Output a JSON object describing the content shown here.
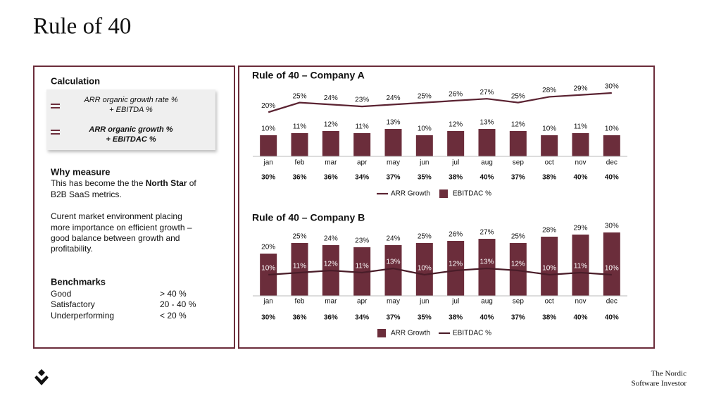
{
  "title": "Rule of 40",
  "calculation": {
    "heading": "Calculation",
    "formula_1": [
      "ARR organic growth rate %",
      "+ EBITDA %"
    ],
    "formula_2": [
      "ARR organic growth %",
      "+ EBITDAC %"
    ]
  },
  "why_measure": {
    "heading": "Why measure",
    "paragraph_1": [
      [
        "This has become the the ",
        "North Star",
        " of"
      ],
      [
        "B2B SaaS metrics."
      ]
    ],
    "paragraph_2": [
      "Curent market environment placing",
      "more importance on efficient growth –",
      "good balance between growth and",
      "profitability."
    ]
  },
  "benchmarks": {
    "heading": "Benchmarks",
    "rows": [
      [
        "Good",
        "> 40 %"
      ],
      [
        "Satisfactory",
        "20 - 40 %"
      ],
      [
        "Underperforming",
        "< 20 %"
      ]
    ]
  },
  "footer": [
    "The Nordic",
    "Software Investor"
  ],
  "chart_data": [
    {
      "type": "combo",
      "title": "Rule of 40 – Company A",
      "categories": [
        "jan",
        "feb",
        "mar",
        "apr",
        "may",
        "jun",
        "jul",
        "aug",
        "sep",
        "oct",
        "nov",
        "dec"
      ],
      "series": [
        {
          "name": "ARR Growth",
          "type": "line",
          "axis": "y2",
          "color": "#5b2332",
          "values": [
            20,
            25,
            24,
            23,
            24,
            25,
            26,
            27,
            25,
            28,
            29,
            30
          ],
          "value_labels": [
            "20%",
            "25%",
            "24%",
            "23%",
            "24%",
            "25%",
            "26%",
            "27%",
            "25%",
            "28%",
            "29%",
            "30%"
          ]
        },
        {
          "name": "EBITDAC %",
          "type": "bar",
          "color": "#6b2d3b",
          "values": [
            10,
            11,
            12,
            11,
            13,
            10,
            12,
            13,
            12,
            10,
            11,
            10
          ],
          "value_labels": [
            "10%",
            "11%",
            "12%",
            "11%",
            "13%",
            "10%",
            "12%",
            "13%",
            "12%",
            "10%",
            "11%",
            "10%"
          ]
        }
      ],
      "ylim": [
        0,
        40
      ],
      "y2lim": [
        -3,
        41
      ],
      "totals": {
        "values": [
          30,
          36,
          36,
          34,
          37,
          35,
          38,
          40,
          37,
          38,
          40,
          40
        ],
        "value_labels": [
          "30%",
          "36%",
          "36%",
          "34%",
          "37%",
          "35%",
          "38%",
          "40%",
          "37%",
          "38%",
          "40%",
          "40%"
        ]
      }
    },
    {
      "type": "combo",
      "title": "Rule of 40 – Company B",
      "categories": [
        "jan",
        "feb",
        "mar",
        "apr",
        "may",
        "jun",
        "jul",
        "aug",
        "sep",
        "oct",
        "nov",
        "dec"
      ],
      "series": [
        {
          "name": "ARR Growth",
          "type": "bar",
          "color": "#6b2d3b",
          "values": [
            20,
            25,
            24,
            23,
            24,
            25,
            26,
            27,
            25,
            28,
            29,
            30
          ],
          "value_labels": [
            "20%",
            "25%",
            "24%",
            "23%",
            "24%",
            "25%",
            "26%",
            "27%",
            "25%",
            "28%",
            "29%",
            "30%"
          ]
        },
        {
          "name": "EBITDAC %",
          "type": "line",
          "color": "#4a1d29",
          "values": [
            10,
            11,
            12,
            11,
            13,
            10,
            12,
            13,
            12,
            10,
            11,
            10
          ],
          "value_labels": [
            "10%",
            "11%",
            "12%",
            "11%",
            "13%",
            "10%",
            "12%",
            "13%",
            "12%",
            "10%",
            "11%",
            "10%"
          ]
        }
      ],
      "ylim": [
        0,
        40
      ],
      "totals": {
        "values": [
          30,
          36,
          36,
          34,
          37,
          35,
          38,
          40,
          37,
          38,
          40,
          40
        ],
        "value_labels": [
          "30%",
          "36%",
          "36%",
          "34%",
          "37%",
          "35%",
          "38%",
          "40%",
          "37%",
          "38%",
          "40%",
          "40%"
        ]
      }
    }
  ]
}
